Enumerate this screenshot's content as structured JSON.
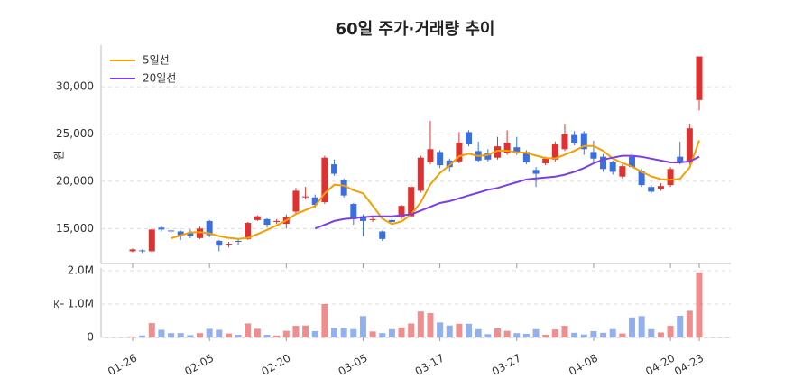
{
  "chart_data": [
    {
      "type": "candlestick",
      "title": "60일 주가·거래량 추이",
      "ylabel": "원",
      "open": [
        12600,
        12700,
        12600,
        15100,
        14800,
        14700,
        14500,
        14000,
        15800,
        13700,
        13300,
        13700,
        13900,
        15900,
        16000,
        15700,
        15500,
        16800,
        18300,
        18300,
        17800,
        21800,
        20100,
        17600,
        16300,
        15900,
        14700,
        15900,
        16200,
        16300,
        19000,
        22000,
        23100,
        22200,
        22100,
        25200,
        23200,
        23000,
        22500,
        23000,
        23600,
        23100,
        21200,
        21900,
        22300,
        23400,
        24900,
        25100,
        23100,
        22600,
        22000,
        20500,
        22600,
        21100,
        19400,
        19200,
        19600,
        22600,
        22000,
        28600
      ],
      "high": [
        12900,
        12800,
        15000,
        15300,
        14900,
        14800,
        14900,
        15200,
        15900,
        13800,
        13600,
        13900,
        15700,
        16400,
        16100,
        16000,
        16500,
        19300,
        19400,
        18600,
        22700,
        22300,
        20300,
        17700,
        16500,
        16200,
        14800,
        16100,
        17500,
        19600,
        22700,
        26400,
        23300,
        22400,
        25200,
        25400,
        24200,
        23400,
        24700,
        25400,
        24700,
        23300,
        21500,
        22600,
        24200,
        26100,
        25300,
        25300,
        24300,
        22900,
        22200,
        21800,
        22900,
        21300,
        19600,
        19800,
        21500,
        24200,
        26100,
        33200
      ],
      "low": [
        12500,
        12400,
        12500,
        14700,
        14500,
        13800,
        14000,
        13900,
        14100,
        12600,
        13000,
        13300,
        13800,
        15800,
        15100,
        15500,
        15000,
        16500,
        18100,
        17200,
        17600,
        20600,
        18300,
        15400,
        14200,
        15700,
        13700,
        15500,
        16000,
        16200,
        18800,
        21800,
        21400,
        21000,
        21900,
        23700,
        22000,
        22100,
        22300,
        22800,
        22800,
        21800,
        19400,
        21700,
        22100,
        23200,
        23800,
        22800,
        22000,
        21000,
        20700,
        20300,
        21300,
        19400,
        18700,
        19000,
        19400,
        21800,
        21800,
        27500
      ],
      "close": [
        12800,
        12600,
        14900,
        14900,
        14700,
        14300,
        14200,
        15000,
        14300,
        13200,
        13400,
        13600,
        15600,
        16300,
        15400,
        15800,
        16200,
        19000,
        18400,
        17500,
        22500,
        20800,
        18500,
        16000,
        15800,
        16000,
        13900,
        15700,
        17400,
        19400,
        22500,
        23400,
        21700,
        21500,
        24100,
        23900,
        22200,
        22300,
        23700,
        24100,
        23000,
        22000,
        20800,
        22400,
        23900,
        25000,
        24000,
        23400,
        22400,
        21300,
        21000,
        21600,
        21500,
        19600,
        18900,
        19500,
        21300,
        22000,
        25600,
        33200
      ],
      "up_color": "#e03131",
      "down_color": "#3b6fe0",
      "series": [
        {
          "name": "5일선",
          "color": "#f59f00",
          "values": [
            null,
            null,
            null,
            null,
            13980,
            14280,
            14600,
            14620,
            14500,
            14200,
            14020,
            13900,
            14020,
            14420,
            14860,
            15340,
            15860,
            16540,
            16960,
            17380,
            18720,
            19640,
            19540,
            19060,
            18720,
            17420,
            16040,
            15480,
            15760,
            16480,
            17780,
            19680,
            20880,
            21700,
            22640,
            22920,
            22680,
            22800,
            23240,
            23240,
            23060,
            23020,
            22720,
            22460,
            22420,
            22820,
            23220,
            23740,
            23740,
            23220,
            22420,
            21940,
            21560,
            21000,
            20520,
            20220,
            20160,
            20260,
            21460,
            24320
          ]
        },
        {
          "name": "20일선",
          "color": "#7b3fe4",
          "values": [
            null,
            null,
            null,
            null,
            null,
            null,
            null,
            null,
            null,
            null,
            null,
            null,
            null,
            null,
            null,
            null,
            null,
            null,
            null,
            15000,
            15400,
            15800,
            16000,
            16100,
            16200,
            16300,
            16300,
            16300,
            16400,
            16500,
            16900,
            17300,
            17700,
            17900,
            18200,
            18500,
            18800,
            19100,
            19300,
            19600,
            19900,
            20200,
            20300,
            20400,
            20500,
            20700,
            21000,
            21400,
            21900,
            22300,
            22500,
            22700,
            22700,
            22600,
            22400,
            22200,
            22000,
            22000,
            22100,
            22600
          ]
        }
      ],
      "ylim": [
        11500,
        34400
      ],
      "yticks": [
        {
          "value": 15000,
          "label": "15,000"
        },
        {
          "value": 20000,
          "label": "20,000"
        },
        {
          "value": 25000,
          "label": "25,000"
        },
        {
          "value": 30000,
          "label": "30,000"
        }
      ],
      "grid": true,
      "legend": "top-left"
    },
    {
      "type": "bar",
      "ylabel": "주",
      "categories": [
        "01-26",
        null,
        null,
        null,
        null,
        null,
        null,
        null,
        "02-05",
        null,
        null,
        null,
        null,
        null,
        null,
        null,
        "02-20",
        null,
        null,
        null,
        null,
        null,
        null,
        null,
        "03-05",
        null,
        null,
        null,
        null,
        null,
        null,
        null,
        "03-17",
        null,
        null,
        null,
        null,
        null,
        null,
        null,
        "03-27",
        null,
        null,
        null,
        null,
        null,
        null,
        null,
        "04-08",
        null,
        null,
        null,
        null,
        null,
        null,
        null,
        "04-20",
        null,
        null,
        "04-23"
      ],
      "values": [
        30000,
        60000,
        430000,
        230000,
        130000,
        130000,
        70000,
        130000,
        260000,
        230000,
        120000,
        80000,
        420000,
        260000,
        80000,
        60000,
        200000,
        350000,
        360000,
        190000,
        1000000,
        290000,
        290000,
        250000,
        640000,
        180000,
        130000,
        250000,
        300000,
        420000,
        780000,
        730000,
        450000,
        360000,
        410000,
        410000,
        250000,
        100000,
        270000,
        200000,
        130000,
        110000,
        250000,
        80000,
        240000,
        350000,
        140000,
        90000,
        190000,
        140000,
        250000,
        120000,
        600000,
        640000,
        250000,
        150000,
        350000,
        650000,
        800000,
        1950000
      ],
      "ylim": [
        0,
        2080000
      ],
      "yticks": [
        0,
        {
          "value": 1000000,
          "label": "1.0M"
        },
        {
          "value": 2000000,
          "label": "2.0M"
        }
      ],
      "grid": true
    }
  ]
}
